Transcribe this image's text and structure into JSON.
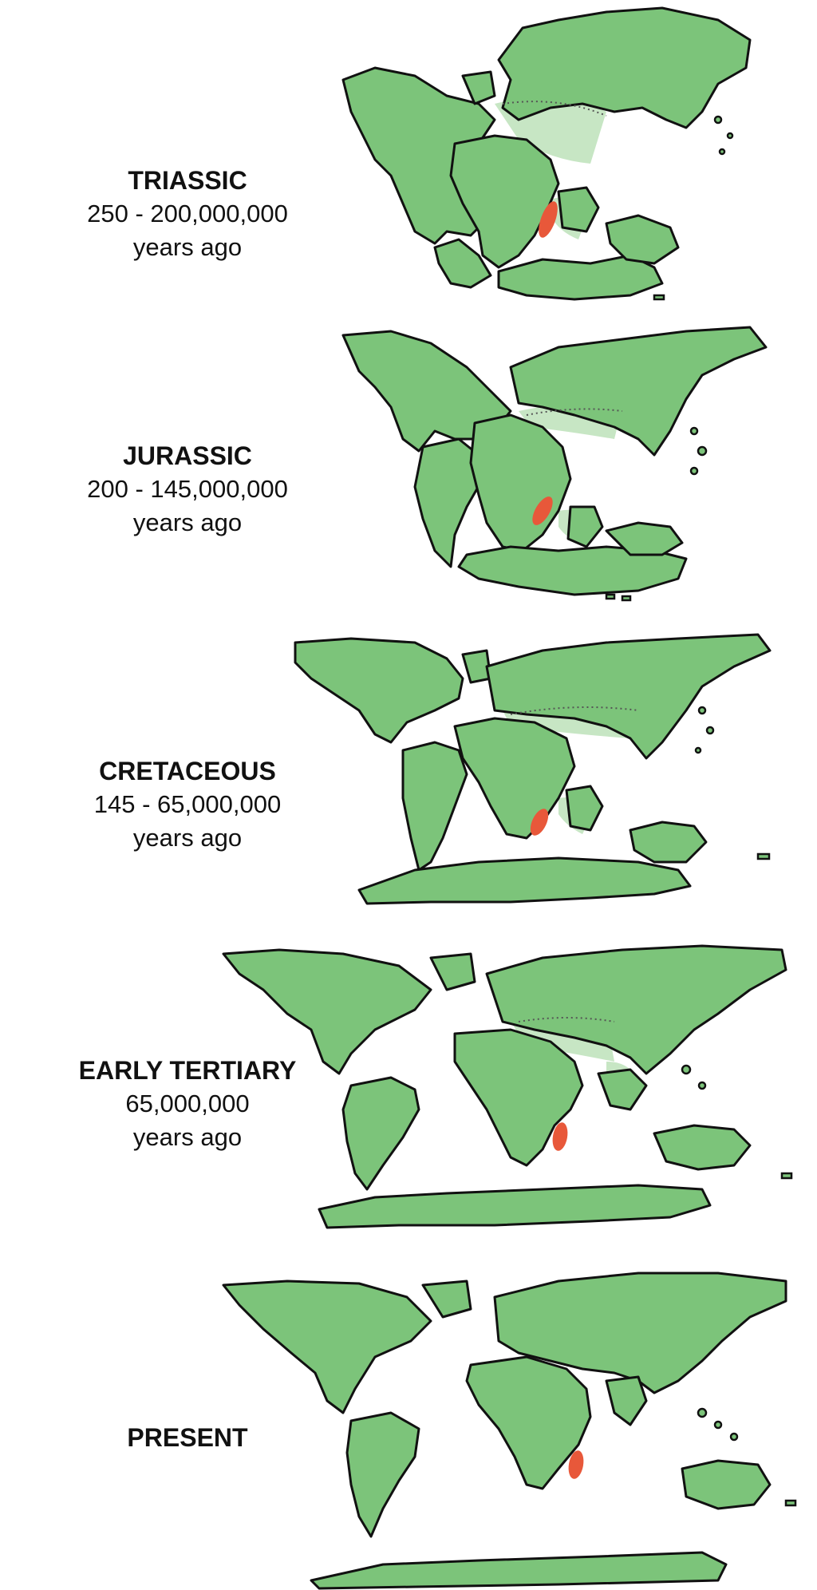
{
  "panels": [
    {
      "era": "TRIASSIC",
      "range": "250 - 200,000,000",
      "suffix": "years ago"
    },
    {
      "era": "JURASSIC",
      "range": "200 - 145,000,000",
      "suffix": "years ago"
    },
    {
      "era": "CRETACEOUS",
      "range": "145 - 65,000,000",
      "suffix": "years ago"
    },
    {
      "era": "EARLY TERTIARY",
      "range": "65,000,000",
      "suffix": "years ago"
    },
    {
      "era": "PRESENT",
      "range": "",
      "suffix": ""
    }
  ],
  "colors": {
    "land": "#7cc47a",
    "madagascar": "#e8583a",
    "outline": "#111111"
  }
}
